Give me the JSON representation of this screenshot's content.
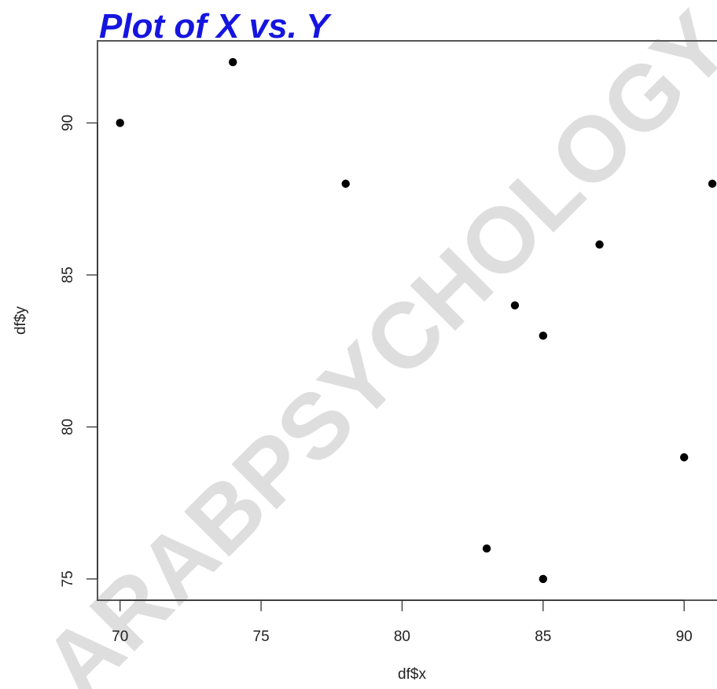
{
  "chart_data": {
    "type": "scatter",
    "title": "Plot of X vs. Y",
    "xlabel": "df$x",
    "ylabel": "df$y",
    "xlim": [
      69.2,
      91.5
    ],
    "ylim": [
      74.3,
      92.7
    ],
    "xticks": [
      70,
      75,
      80,
      85,
      90
    ],
    "yticks": [
      75,
      80,
      85,
      90
    ],
    "xtick_labels": [
      "70",
      "75",
      "80",
      "85",
      "90"
    ],
    "ytick_labels": [
      "75",
      "80",
      "85",
      "90"
    ],
    "points": [
      {
        "x": 70,
        "y": 90
      },
      {
        "x": 74,
        "y": 92
      },
      {
        "x": 78,
        "y": 88
      },
      {
        "x": 84,
        "y": 84
      },
      {
        "x": 85,
        "y": 83
      },
      {
        "x": 87,
        "y": 86
      },
      {
        "x": 91,
        "y": 88
      },
      {
        "x": 90,
        "y": 79
      },
      {
        "x": 83,
        "y": 76
      },
      {
        "x": 85,
        "y": 75
      }
    ],
    "marker_color": "#000000",
    "title_color": "#1515e0",
    "grid": false,
    "legend": "none"
  },
  "watermark": {
    "text": "ARABPSYCHOLOGY",
    "color": "#d2d2d2"
  }
}
